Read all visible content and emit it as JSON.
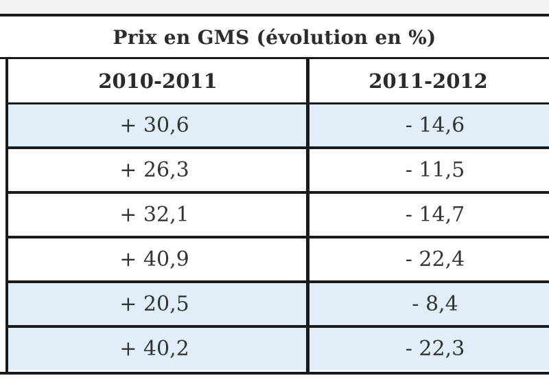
{
  "table": {
    "title": "Prix en GMS (évolution en %)",
    "columns": [
      "2010-2011",
      "2011-2012"
    ],
    "rows": [
      {
        "v1": "+ 30,6",
        "v2": "- 14,6",
        "shaded": true
      },
      {
        "v1": "+ 26,3",
        "v2": "- 11,5",
        "shaded": false
      },
      {
        "v1": "+ 32,1",
        "v2": "- 14,7",
        "shaded": false
      },
      {
        "v1": "+ 40,9",
        "v2": "- 22,4",
        "shaded": false
      },
      {
        "v1": "+ 20,5",
        "v2": "- 8,4",
        "shaded": true
      },
      {
        "v1": "+ 40,2",
        "v2": "- 22,3",
        "shaded": true
      }
    ]
  },
  "colors": {
    "rule": "#1a1a1a",
    "shade": "#dfeef8",
    "text": "#333333"
  }
}
